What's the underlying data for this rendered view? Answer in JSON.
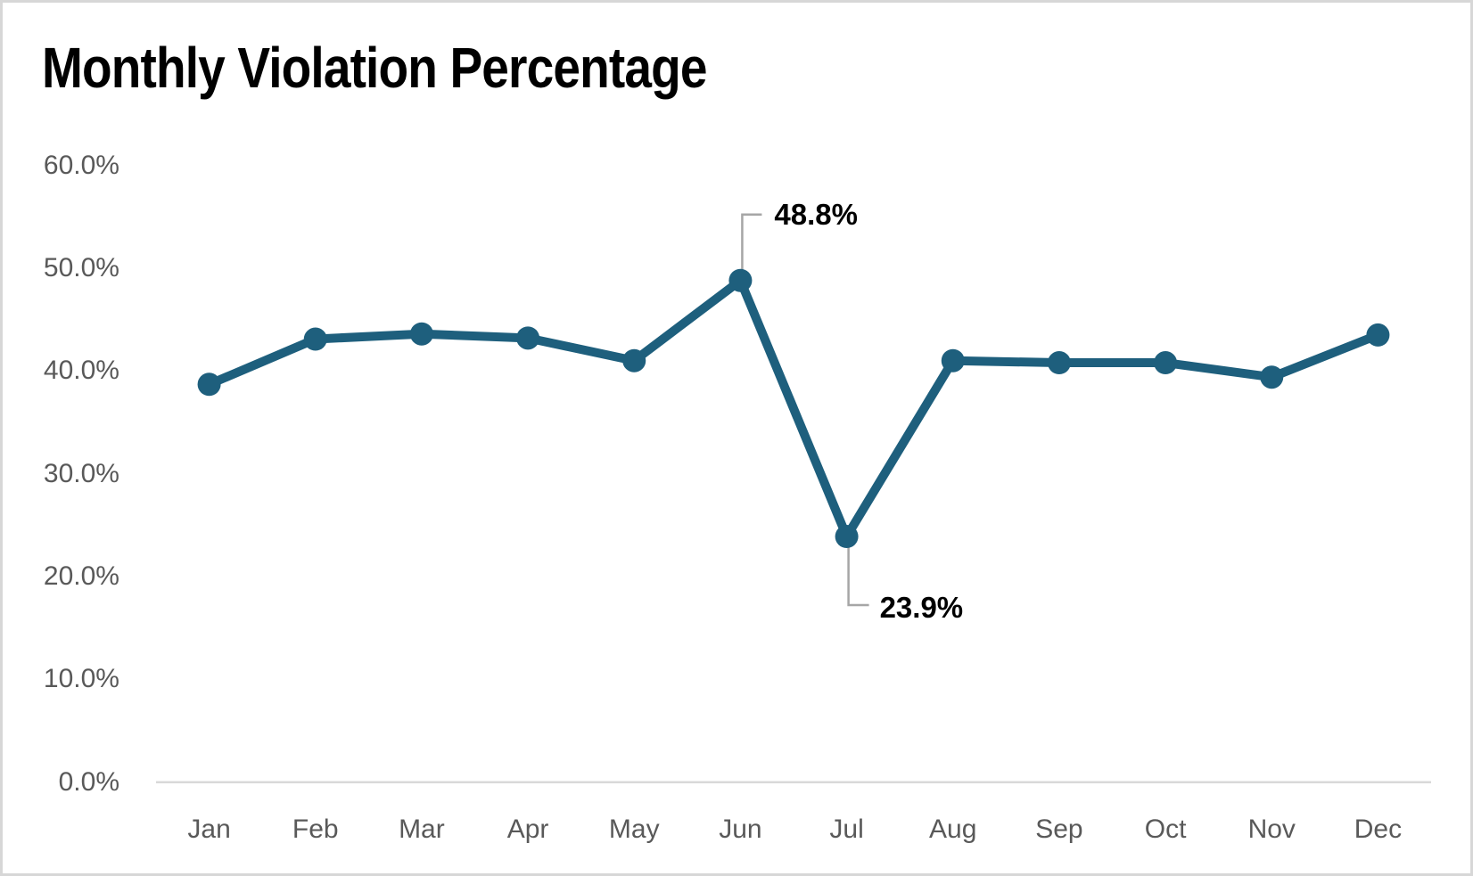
{
  "title": "Monthly Violation Percentage",
  "colors": {
    "background": "#ffffff",
    "frame_border": "#d7d7d7",
    "line": "#1e5f7d",
    "marker": "#1e5f7d",
    "axis_line": "#d9d9d9",
    "tick_text": "#595959",
    "title_text": "#000000",
    "data_label_text": "#000000",
    "leader_line": "#a6a6a6"
  },
  "chart_data": {
    "type": "line",
    "title": "Monthly Violation Percentage",
    "categories": [
      "Jan",
      "Feb",
      "Mar",
      "Apr",
      "May",
      "Jun",
      "Jul",
      "Aug",
      "Sep",
      "Oct",
      "Nov",
      "Dec"
    ],
    "values": [
      38.7,
      43.1,
      43.6,
      43.2,
      41.0,
      48.8,
      23.9,
      41.0,
      40.8,
      40.8,
      39.4,
      43.5
    ],
    "ylim": [
      0,
      60
    ],
    "ytick_step": 10,
    "ytick_labels": [
      "0.0%",
      "10.0%",
      "20.0%",
      "30.0%",
      "40.0%",
      "50.0%",
      "60.0%"
    ],
    "grid": false,
    "legend": "none",
    "markers": true,
    "data_labels": [
      {
        "category": "Jun",
        "text": "48.8%",
        "placement": "above"
      },
      {
        "category": "Jul",
        "text": "23.9%",
        "placement": "below"
      }
    ]
  }
}
